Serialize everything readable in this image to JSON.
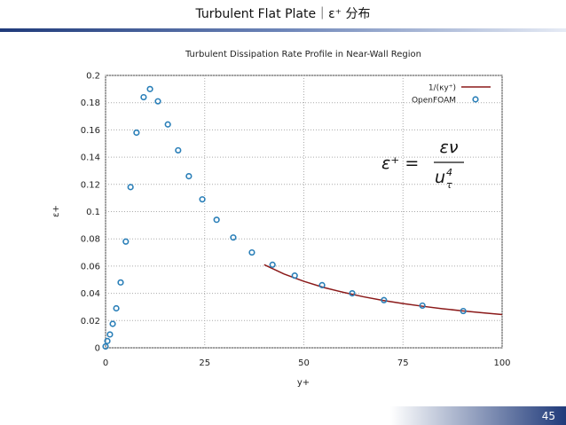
{
  "header": {
    "title": "Turbulent Flat Plate｜ε⁺ 分布"
  },
  "footer": {
    "page": "45"
  },
  "formula": {
    "lhs": "ε⁺ =",
    "numerator": "εν",
    "denominator": "u",
    "sub": "τ",
    "sup": "4"
  },
  "chart_data": {
    "type": "scatter",
    "title": "Turbulent Dissipation Rate Profile in Near-Wall Region",
    "x_label": "y+",
    "y_label": "ε+",
    "xlim": [
      0,
      100
    ],
    "ylim": [
      0,
      0.2
    ],
    "xticks": [
      0,
      25,
      50,
      75,
      100
    ],
    "yticks": [
      0,
      0.02,
      0.04,
      0.06,
      0.08,
      0.1,
      0.12,
      0.14,
      0.16,
      0.18,
      0.2
    ],
    "grid": true,
    "legend": "top-right",
    "series": [
      {
        "name": "1/(κy⁺)",
        "color": "#8b1a1a",
        "kind": "line",
        "x": [
          40,
          45,
          50,
          55,
          60,
          65,
          70,
          75,
          80,
          85,
          90,
          95,
          100
        ],
        "values": [
          0.061,
          0.0542,
          0.0488,
          0.0443,
          0.0407,
          0.0375,
          0.0348,
          0.0325,
          0.0305,
          0.0287,
          0.0271,
          0.0257,
          0.0244
        ]
      },
      {
        "name": "OpenFOAM",
        "color": "#2a7fb8",
        "kind": "marker",
        "x": [
          0,
          0.45,
          1.1,
          1.8,
          2.7,
          3.8,
          5.1,
          6.3,
          7.8,
          9.6,
          11.2,
          13.2,
          15.7,
          18.3,
          21.0,
          24.4,
          28.0,
          32.2,
          36.9,
          42.1,
          47.7,
          54.6,
          62.2,
          70.2,
          79.9,
          90.2
        ],
        "values": [
          0.001,
          0.005,
          0.0098,
          0.0176,
          0.029,
          0.048,
          0.078,
          0.118,
          0.158,
          0.184,
          0.19,
          0.181,
          0.164,
          0.145,
          0.126,
          0.109,
          0.094,
          0.081,
          0.07,
          0.061,
          0.053,
          0.046,
          0.04,
          0.035,
          0.031,
          0.027
        ]
      }
    ]
  }
}
